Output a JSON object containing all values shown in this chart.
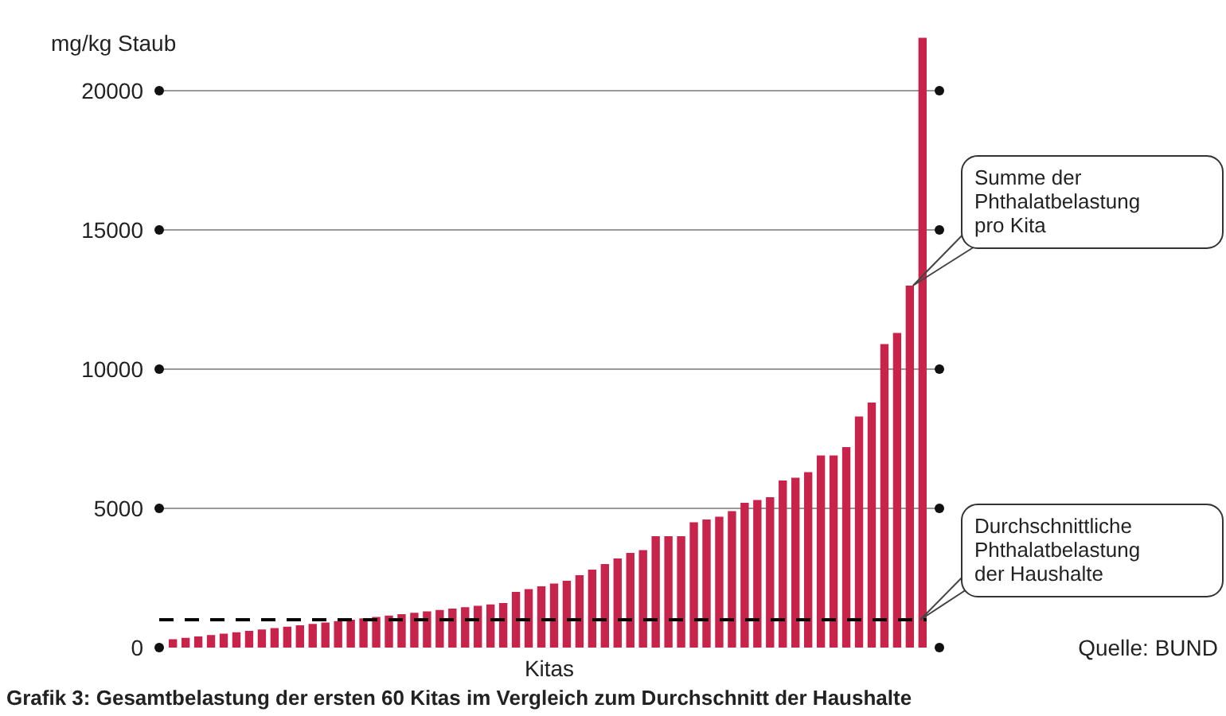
{
  "chart_data": {
    "type": "bar",
    "ylabel": "mg/kg Staub",
    "xlabel": "Kitas",
    "categories": [
      null,
      null,
      null,
      null,
      null,
      null,
      null,
      null,
      null,
      null,
      null,
      null,
      null,
      null,
      null,
      null,
      null,
      null,
      null,
      null,
      null,
      null,
      null,
      null,
      null,
      null,
      null,
      null,
      null,
      null,
      null,
      null,
      null,
      null,
      null,
      null,
      null,
      null,
      null,
      null,
      null,
      null,
      null,
      null,
      null,
      null,
      null,
      null,
      null,
      null,
      null,
      null,
      null,
      null,
      null,
      null,
      null,
      null,
      null,
      null
    ],
    "values": [
      300,
      350,
      400,
      450,
      500,
      550,
      600,
      650,
      700,
      750,
      800,
      850,
      900,
      950,
      1000,
      1050,
      1100,
      1150,
      1200,
      1250,
      1300,
      1350,
      1400,
      1450,
      1500,
      1550,
      1600,
      2000,
      2100,
      2200,
      2300,
      2400,
      2600,
      2800,
      3000,
      3200,
      3400,
      3500,
      4000,
      4000,
      4000,
      4500,
      4600,
      4700,
      4900,
      5200,
      5300,
      5400,
      6000,
      6100,
      6300,
      6900,
      6900,
      7200,
      8300,
      8800,
      10900,
      11300,
      13000,
      21900
    ],
    "color": "#c8234a",
    "ylim": [
      0,
      22000
    ],
    "yticks": [
      0,
      5000,
      10000,
      15000,
      20000
    ],
    "grid": "y",
    "ref_lines": [
      {
        "axis": "y",
        "value": 1000,
        "label": "Durchschnittliche\nPhthalatbelastung\nder Haushalte",
        "line_style": "dashed",
        "color": "#000000"
      }
    ],
    "annotations": [
      "Summe der\nPhthalatbelastung\npro Kita",
      "Quelle: BUND",
      "Grafik 3: Gesamtbelastung der ersten 60 Kitas im Vergleich zum Durchschnitt der Haushalte"
    ]
  }
}
